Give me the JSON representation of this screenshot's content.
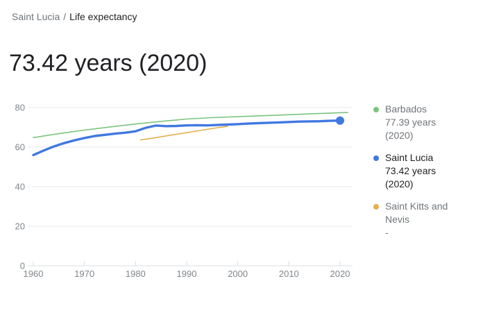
{
  "breadcrumb": {
    "location": "Saint Lucia",
    "separator": "/",
    "metric": "Life expectancy"
  },
  "headline": "73.42 years (2020)",
  "chart_data": {
    "type": "line",
    "title": "Life expectancy",
    "xlabel": "",
    "ylabel": "",
    "x_ticks": [
      1960,
      1970,
      1980,
      1990,
      2000,
      2010,
      2020
    ],
    "y_ticks": [
      0,
      20,
      40,
      60,
      80
    ],
    "x_range": [
      1959,
      2022.4
    ],
    "y_range": [
      0,
      82.5
    ],
    "grid": true,
    "legend_position": "right",
    "grid_color": "#e8eaed",
    "baseline_color": "#dadce0",
    "axis_label_color": "#80868b",
    "series": [
      {
        "name": "Barbados",
        "value_label": "77.39 years",
        "year_label": "(2020)",
        "color": "#7bc47f",
        "line_width": 1.6,
        "end_dot": false,
        "x": [
          1960,
          1965,
          1970,
          1975,
          1980,
          1985,
          1990,
          1995,
          2000,
          2005,
          2010,
          2015,
          2020,
          2021.5
        ],
        "y": [
          64.8,
          66.8,
          68.6,
          70.2,
          71.7,
          73.0,
          74.2,
          74.9,
          75.4,
          75.9,
          76.4,
          76.9,
          77.39,
          77.5
        ]
      },
      {
        "name": "Saint Lucia",
        "value_label": "73.42 years",
        "year_label": "(2020)",
        "color": "#4178e1",
        "line_width": 3.4,
        "end_dot": true,
        "x": [
          1960,
          1962,
          1964,
          1966,
          1968,
          1970,
          1972,
          1974,
          1976,
          1978,
          1980,
          1982,
          1984,
          1986,
          1988,
          1990,
          1992,
          1994,
          1996,
          1998,
          2000,
          2002,
          2004,
          2006,
          2008,
          2010,
          2012,
          2014,
          2016,
          2018,
          2020
        ],
        "y": [
          56.0,
          58.2,
          60.3,
          62.0,
          63.4,
          64.6,
          65.6,
          66.2,
          66.8,
          67.3,
          68.0,
          69.8,
          70.9,
          70.6,
          70.7,
          71.0,
          71.1,
          71.0,
          71.2,
          71.4,
          71.6,
          71.9,
          72.1,
          72.3,
          72.5,
          72.7,
          72.9,
          73.0,
          73.1,
          73.3,
          73.42
        ]
      },
      {
        "name": "Saint Kitts and Nevis",
        "value_label": "-",
        "year_label": "",
        "color": "#e3b04f",
        "line_width": 1.6,
        "end_dot": false,
        "x": [
          1981,
          1984,
          1987,
          1990,
          1993,
          1996,
          1998
        ],
        "y": [
          63.6,
          64.8,
          66.1,
          67.3,
          68.6,
          69.8,
          70.5
        ]
      }
    ]
  }
}
